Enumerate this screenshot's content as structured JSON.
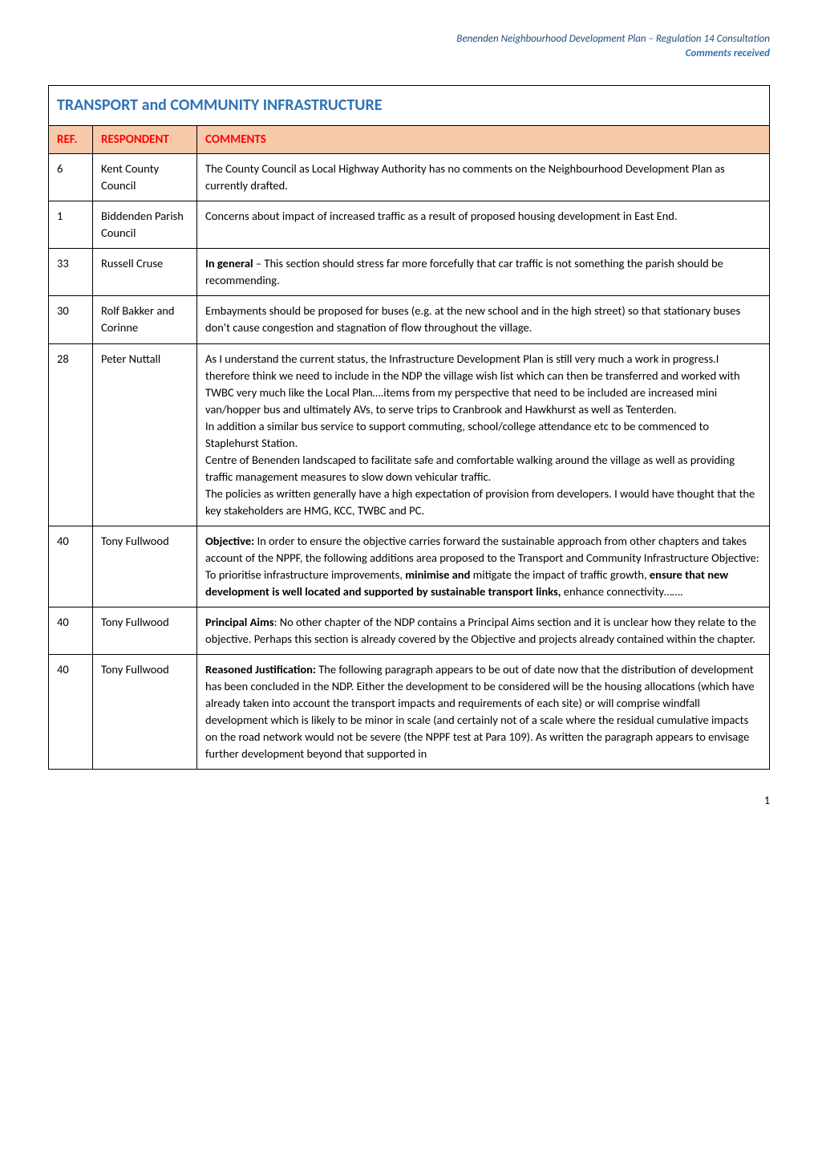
{
  "header": {
    "line1": "Benenden Neighbourhood Development Plan – Regulation 14 Consultation",
    "line2": "Comments received"
  },
  "table": {
    "title": "TRANSPORT and COMMUNITY INFRASTRUCTURE",
    "columns": {
      "ref": "REF.",
      "respondent": "RESPONDENT",
      "comments": "COMMENTS"
    },
    "rows": [
      {
        "ref": "6",
        "respondent": "Kent County Council",
        "comments_html": "The County Council as Local Highway Authority has no comments on the Neighbourhood Development Plan as currently drafted."
      },
      {
        "ref": "1",
        "respondent": "Biddenden Parish Council",
        "comments_html": "Concerns about impact of increased traffic as a result of proposed housing development in East End."
      },
      {
        "ref": "33",
        "respondent": "Russell Cruse",
        "comments_html": "<strong>In general</strong> – This section should stress far more forcefully that car traffic is not something the parish should be recommending."
      },
      {
        "ref": "30",
        "respondent": "Rolf Bakker and Corinne",
        "comments_html": "Embayments should be proposed for buses (e.g. at the new school and in the high street) so that stationary buses don't cause congestion and stagnation of flow throughout the village."
      },
      {
        "ref": "28",
        "respondent": "Peter Nuttall",
        "comments_html": "As I understand the current status, the Infrastructure Development Plan is still very much a work in progress.I therefore think we need to include in the NDP the village wish list which can then be transferred and worked with TWBC very much like the Local Plan….items from my perspective that need to be included are increased mini van/hopper bus and ultimately AVs, to serve trips to Cranbrook and Hawkhurst as well as Tenterden.<br>In addition a similar bus service to support commuting, school/college attendance etc to be commenced to Staplehurst Station.<br>Centre of Benenden landscaped to facilitate safe and comfortable walking around the village as well as providing traffic management measures to slow down vehicular traffic.<br>The policies as written generally have a high expectation of provision from developers. I would have thought that the key stakeholders are HMG, KCC, TWBC and PC."
      },
      {
        "ref": "40",
        "respondent": "Tony Fullwood",
        "comments_html": "<strong>Objective:</strong> In order to ensure the objective carries forward the sustainable approach from other chapters and takes account of the NPPF, the following additions area proposed to the Transport and Community Infrastructure Objective: To prioritise infrastructure improvements, <strong>minimise and</strong> mitigate the impact of traffic growth, <strong>ensure that new development is well located and supported by sustainable transport links,</strong> enhance connectivity……."
      },
      {
        "ref": "40",
        "respondent": "Tony Fullwood",
        "comments_html": "<strong>Principal Aims</strong>: No other chapter of the NDP contains a Principal Aims section and it is unclear how they relate to the objective. Perhaps this section is already covered by the Objective and projects already contained within the chapter."
      },
      {
        "ref": "40",
        "respondent": "Tony Fullwood",
        "comments_html": "<strong>Reasoned Justification:</strong> The following paragraph appears to be out of date now that the distribution of development has been concluded in the NDP. Either the development to be considered will be the housing allocations (which have already taken into account the transport impacts and requirements of each site) or will comprise windfall development which is likely to be minor in scale (and certainly not of a scale where the residual cumulative impacts on the road network would not be severe (the NPPF test at Para 109). As written the paragraph appears to envisage further development beyond that supported in"
      }
    ]
  },
  "page_number": "1",
  "colors": {
    "header_line1": "#1f4e79",
    "header_line2": "#2e74b5",
    "title": "#2e74b5",
    "header_row_bg": "#f7caac",
    "header_row_text": "#ff0000",
    "border": "#000000",
    "body_text": "#000000"
  }
}
